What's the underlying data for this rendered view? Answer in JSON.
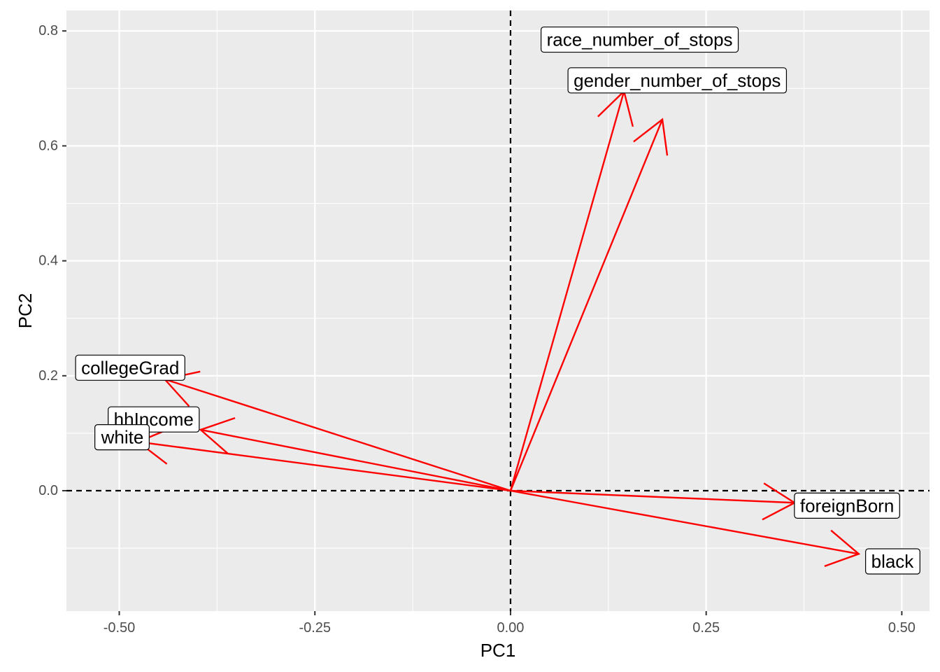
{
  "chart_data": {
    "type": "biplot",
    "title": "",
    "xlabel": "PC1",
    "ylabel": "PC2",
    "xlim": [
      -0.5675,
      0.5354
    ],
    "ylim": [
      -0.2095,
      0.8356
    ],
    "x_ticks": [
      -0.5,
      -0.25,
      0.0,
      0.25,
      0.5
    ],
    "x_tick_labels": [
      "-0.50",
      "-0.25",
      "0.00",
      "0.25",
      "0.50"
    ],
    "y_ticks": [
      0.0,
      0.2,
      0.4,
      0.6,
      0.8
    ],
    "y_tick_labels": [
      "0.0",
      "0.2",
      "0.4",
      "0.6",
      "0.8"
    ],
    "grid": true,
    "reference_lines": {
      "x": 0,
      "y": 0,
      "style": "dashed"
    },
    "arrow_color": "#ff0000",
    "panel_background": "#ebebeb",
    "grid_color": "#ffffff",
    "vectors": [
      {
        "label": "race_number_of_stops",
        "x": 0.145,
        "y": 0.695,
        "label_x": 0.165,
        "label_y": 0.785
      },
      {
        "label": "gender_number_of_stops",
        "x": 0.194,
        "y": 0.646,
        "label_x": 0.213,
        "label_y": 0.714
      },
      {
        "label": "collegeGrad",
        "x": -0.442,
        "y": 0.194,
        "label_x": -0.486,
        "label_y": 0.214
      },
      {
        "label": "hhIncome",
        "x": -0.396,
        "y": 0.106,
        "label_x": -0.456,
        "label_y": 0.124
      },
      {
        "label": "white",
        "x": -0.476,
        "y": 0.085,
        "label_x": -0.496,
        "label_y": 0.093
      },
      {
        "label": "foreignBorn",
        "x": 0.363,
        "y": -0.021,
        "label_x": 0.43,
        "label_y": -0.026
      },
      {
        "label": "black",
        "x": 0.445,
        "y": -0.11,
        "label_x": 0.488,
        "label_y": -0.123
      }
    ]
  }
}
